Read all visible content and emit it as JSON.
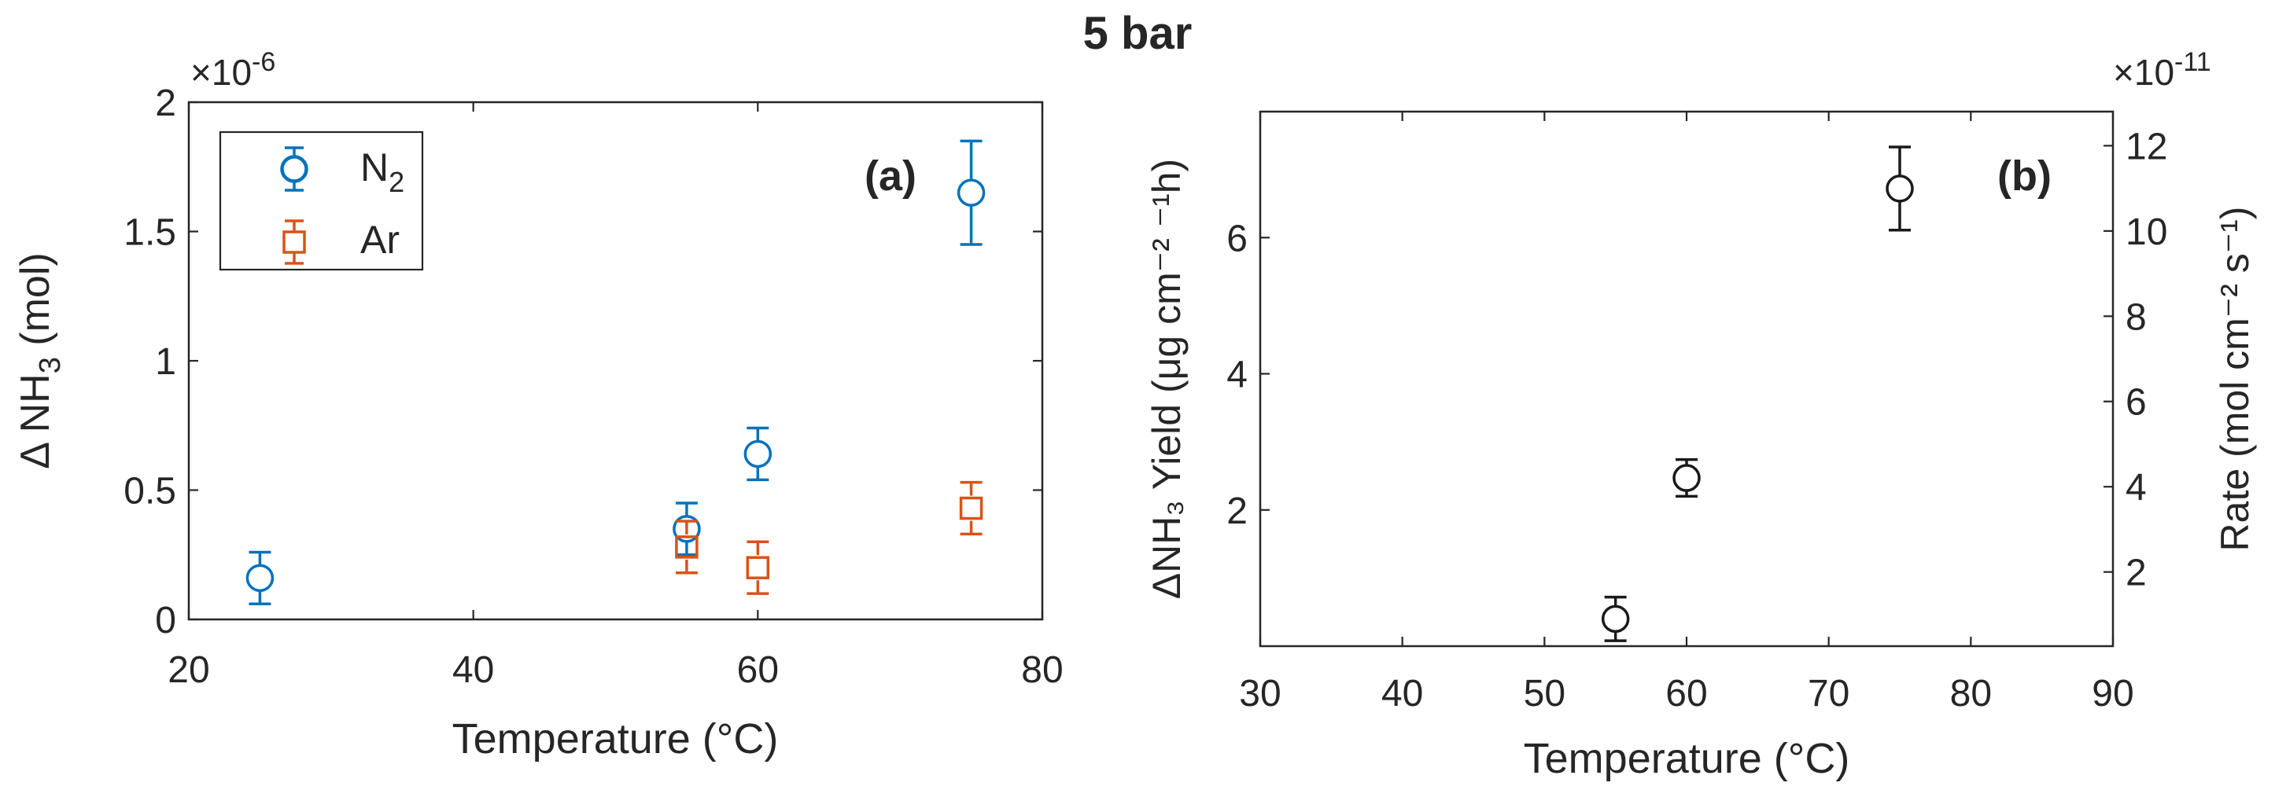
{
  "figure_title": "5 bar",
  "colors": {
    "n2": "#0072BD",
    "ar": "#D95319",
    "b": "#1a1a1a"
  },
  "chart_data": [
    {
      "type": "scatter",
      "panel_label": "(a)",
      "xlabel": "Temperature (°C)",
      "ylabel": {
        "prefix": "Δ NH",
        "sub": "3",
        "suffix": " (mol)"
      },
      "yscale_label": {
        "base": "×10",
        "exp": "-6"
      },
      "xlim": [
        20,
        80
      ],
      "ylim": [
        0,
        2
      ],
      "xticks": [
        20,
        40,
        60,
        80
      ],
      "xtick_labels": [
        "20",
        "40",
        "60",
        "80"
      ],
      "yticks": [
        0,
        0.5,
        1,
        1.5,
        2
      ],
      "ytick_labels": [
        "0",
        "0.5",
        "1",
        "1.5",
        "2"
      ],
      "grid": false,
      "legend": {
        "position": "top-left"
      },
      "series": [
        {
          "name": "N2",
          "label_main": "N",
          "label_sub": "2",
          "marker": "circle",
          "color": "#0072BD",
          "points": [
            {
              "x": 25,
              "y": 0.16,
              "err": 0.1
            },
            {
              "x": 55,
              "y": 0.35,
              "err": 0.1
            },
            {
              "x": 60,
              "y": 0.64,
              "err": 0.1
            },
            {
              "x": 75,
              "y": 1.65,
              "err": 0.2
            }
          ]
        },
        {
          "name": "Ar",
          "label_main": "Ar",
          "label_sub": "",
          "marker": "square",
          "color": "#D95319",
          "points": [
            {
              "x": 55,
              "y": 0.28,
              "err": 0.1
            },
            {
              "x": 60,
              "y": 0.2,
              "err": 0.1
            },
            {
              "x": 75,
              "y": 0.43,
              "err": 0.1
            }
          ]
        }
      ]
    },
    {
      "type": "scatter",
      "panel_label": "(b)",
      "xlabel": "Temperature (°C)",
      "ylabel_left": "ΔNH₃ Yield (μg cm⁻² ⁻¹h)",
      "ylabel_right": "Rate (mol cm⁻² s⁻¹)",
      "right_scale_label": {
        "base": "×10",
        "exp": "-11"
      },
      "xlim": [
        30,
        90
      ],
      "ylim_left": [
        0,
        7.85
      ],
      "ylim_right": [
        0.26,
        12.8
      ],
      "xticks": [
        30,
        40,
        50,
        60,
        70,
        80,
        90
      ],
      "xtick_labels": [
        "30",
        "40",
        "50",
        "60",
        "70",
        "80",
        "90"
      ],
      "yticks_left": [
        2,
        4,
        6
      ],
      "ytick_labels_left": [
        "2",
        "4",
        "6"
      ],
      "yticks_right": [
        2,
        4,
        6,
        8,
        10,
        12
      ],
      "ytick_labels_right": [
        "2",
        "4",
        "6",
        "8",
        "10",
        "12"
      ],
      "grid": false,
      "series": [
        {
          "marker": "circle",
          "color": "#1a1a1a",
          "points": [
            {
              "x": 55,
              "y": 0.4,
              "err": 0.32
            },
            {
              "x": 60,
              "y": 2.47,
              "err": 0.27
            },
            {
              "x": 75,
              "y": 6.72,
              "err": 0.61
            }
          ]
        }
      ]
    }
  ]
}
